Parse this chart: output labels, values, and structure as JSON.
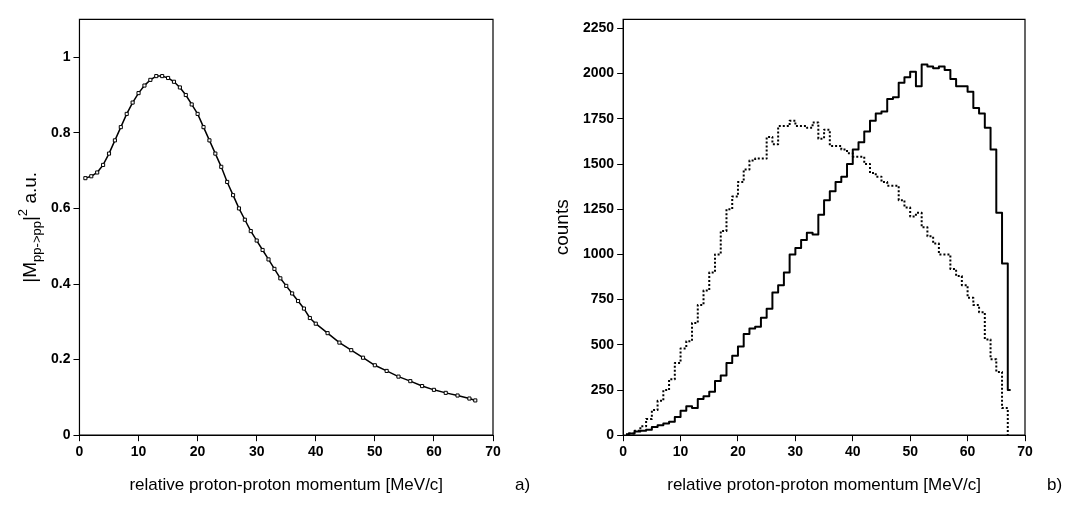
{
  "chart_data": [
    {
      "type": "line",
      "xlabel": "relative proton-proton momentum [MeV/c]",
      "ylabel": "|M$_{pp->pp}$|$^{2}$ a.u.",
      "annotations": [
        "a)"
      ],
      "marker": "square",
      "grid": false,
      "legend": false,
      "xlim": [
        0,
        70
      ],
      "xticks": [
        0,
        10,
        20,
        30,
        40,
        50,
        60,
        70
      ],
      "ylim": [
        0,
        1.1
      ],
      "yticks": [
        0,
        0.2,
        0.4,
        0.6,
        0.8,
        1
      ],
      "x": [
        1,
        2,
        3,
        4,
        5,
        6,
        7,
        8,
        9,
        10,
        11,
        12,
        13,
        14,
        15,
        16,
        17,
        18,
        19,
        20,
        21,
        22,
        23,
        24,
        25,
        26,
        27,
        28,
        29,
        30,
        31,
        32,
        33,
        34,
        35,
        36,
        37,
        38,
        39,
        40,
        42,
        44,
        46,
        48,
        50,
        52,
        54,
        56,
        58,
        60,
        62,
        64,
        66,
        67
      ],
      "series": [
        {
          "color": "#000000",
          "values": [
            0.68,
            0.685,
            0.695,
            0.715,
            0.745,
            0.78,
            0.815,
            0.85,
            0.88,
            0.905,
            0.925,
            0.94,
            0.95,
            0.95,
            0.945,
            0.935,
            0.92,
            0.9,
            0.875,
            0.85,
            0.815,
            0.78,
            0.745,
            0.71,
            0.67,
            0.635,
            0.6,
            0.57,
            0.54,
            0.515,
            0.49,
            0.465,
            0.44,
            0.415,
            0.395,
            0.375,
            0.355,
            0.335,
            0.31,
            0.295,
            0.27,
            0.245,
            0.225,
            0.205,
            0.185,
            0.17,
            0.155,
            0.143,
            0.13,
            0.12,
            0.112,
            0.105,
            0.097,
            0.092
          ]
        }
      ]
    },
    {
      "type": "step",
      "xlabel": "relative proton-proton momentum [MeV/c]",
      "ylabel": "counts",
      "annotations": [
        "b)"
      ],
      "grid": false,
      "legend": false,
      "xlim": [
        0,
        70
      ],
      "xticks": [
        0,
        10,
        20,
        30,
        40,
        50,
        60,
        70
      ],
      "ylim": [
        0,
        2300
      ],
      "yticks": [
        0,
        250,
        500,
        750,
        1000,
        1250,
        1500,
        1750,
        2000,
        2250
      ],
      "x": [
        0.5,
        1.5,
        2.5,
        3.5,
        4.5,
        5.5,
        6.5,
        7.5,
        8.5,
        9.5,
        10.5,
        11.5,
        12.5,
        13.5,
        14.5,
        15.5,
        16.5,
        17.5,
        18.5,
        19.5,
        20.5,
        21.5,
        22.5,
        23.5,
        24.5,
        25.5,
        26.5,
        27.5,
        28.5,
        29.5,
        30.5,
        31.5,
        32.5,
        33.5,
        34.5,
        35.5,
        36.5,
        37.5,
        38.5,
        39.5,
        40.5,
        41.5,
        42.5,
        43.5,
        44.5,
        45.5,
        46.5,
        47.5,
        48.5,
        49.5,
        50.5,
        51.5,
        52.5,
        53.5,
        54.5,
        55.5,
        56.5,
        57.5,
        58.5,
        59.5,
        60.5,
        61.5,
        62.5,
        63.5,
        64.5,
        65.5,
        66.5,
        67.5
      ],
      "series": [
        {
          "color": "#000000",
          "line_style": "solid",
          "values": [
            5,
            10,
            20,
            25,
            30,
            45,
            55,
            65,
            75,
            100,
            135,
            160,
            150,
            200,
            215,
            240,
            300,
            330,
            400,
            440,
            490,
            560,
            590,
            600,
            650,
            700,
            790,
            830,
            900,
            1000,
            1035,
            1080,
            1120,
            1110,
            1220,
            1300,
            1350,
            1400,
            1430,
            1500,
            1580,
            1620,
            1680,
            1740,
            1780,
            1790,
            1860,
            1870,
            1950,
            1980,
            2010,
            1930,
            2050,
            2040,
            2030,
            2040,
            2020,
            1970,
            1930,
            1930,
            1900,
            1810,
            1780,
            1700,
            1580,
            1230,
            950,
            250
          ]
        },
        {
          "color": "#000000",
          "line_style": "dotted",
          "values": [
            2,
            10,
            25,
            50,
            90,
            140,
            190,
            250,
            310,
            400,
            480,
            520,
            620,
            720,
            800,
            900,
            1000,
            1130,
            1250,
            1320,
            1400,
            1470,
            1520,
            1530,
            1530,
            1650,
            1610,
            1710,
            1710,
            1740,
            1710,
            1710,
            1700,
            1730,
            1640,
            1690,
            1600,
            1600,
            1580,
            1560,
            1540,
            1540,
            1500,
            1450,
            1430,
            1400,
            1380,
            1380,
            1300,
            1260,
            1210,
            1230,
            1150,
            1100,
            1060,
            1000,
            1000,
            920,
            880,
            830,
            760,
            720,
            680,
            530,
            420,
            350,
            150,
            0
          ]
        }
      ]
    }
  ]
}
